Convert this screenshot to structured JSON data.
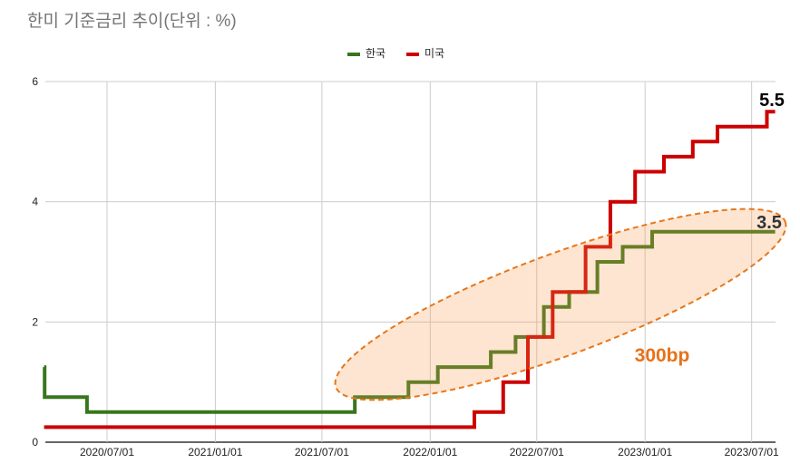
{
  "title": "한미 기준금리 추이(단위 : %)",
  "legend": [
    {
      "label": "한국",
      "color": "#38761d"
    },
    {
      "label": "미국",
      "color": "#cc0000"
    }
  ],
  "annotations": {
    "us_last_value": "5.5",
    "kr_last_value": "3.5",
    "spread_label": "300bp"
  },
  "colors": {
    "korea": "#38761d",
    "us": "#cc0000",
    "highlight_fill": "#f7964680",
    "highlight_stroke": "#e8761a",
    "spread_text": "#e8711a",
    "gridline": "#cccccc",
    "axis": "#333333",
    "title": "#757575"
  },
  "chart_data": {
    "type": "line",
    "step": true,
    "title": "한미 기준금리 추이(단위 : %)",
    "xlabel": "",
    "ylabel": "",
    "ylim": [
      0,
      6
    ],
    "yticks": [
      0,
      2,
      4,
      6
    ],
    "xticks": [
      "2020/07/01",
      "2021/01/01",
      "2021/07/01",
      "2022/01/01",
      "2022/07/01",
      "2023/01/01",
      "2023/07/01"
    ],
    "grid": true,
    "legend_position": "top",
    "series": [
      {
        "name": "한국",
        "color": "#38761d",
        "points": [
          [
            "2020-03-16",
            1.25
          ],
          [
            "2020-03-17",
            0.75
          ],
          [
            "2020-05-28",
            0.5
          ],
          [
            "2021-08-26",
            0.75
          ],
          [
            "2021-11-25",
            1.0
          ],
          [
            "2022-01-14",
            1.25
          ],
          [
            "2022-04-14",
            1.5
          ],
          [
            "2022-05-26",
            1.75
          ],
          [
            "2022-07-13",
            2.25
          ],
          [
            "2022-08-25",
            2.5
          ],
          [
            "2022-10-12",
            3.0
          ],
          [
            "2022-11-24",
            3.25
          ],
          [
            "2023-01-13",
            3.5
          ],
          [
            "2023-08-10",
            3.5
          ]
        ]
      },
      {
        "name": "미국",
        "color": "#cc0000",
        "points": [
          [
            "2020-03-16",
            0.25
          ],
          [
            "2022-03-17",
            0.5
          ],
          [
            "2022-05-05",
            1.0
          ],
          [
            "2022-06-16",
            1.75
          ],
          [
            "2022-07-28",
            2.5
          ],
          [
            "2022-09-22",
            3.25
          ],
          [
            "2022-11-03",
            4.0
          ],
          [
            "2022-12-15",
            4.5
          ],
          [
            "2023-02-02",
            4.75
          ],
          [
            "2023-03-23",
            5.0
          ],
          [
            "2023-05-04",
            5.25
          ],
          [
            "2023-07-27",
            5.5
          ],
          [
            "2023-08-10",
            5.5
          ]
        ]
      }
    ],
    "annotations": [
      {
        "text": "5.5",
        "series": "미국",
        "note": "last value label"
      },
      {
        "text": "3.5",
        "series": "한국",
        "note": "last value label"
      },
      {
        "text": "300bp",
        "note": "rate gap, highlighted by dashed orange ellipse over 2021/08–2023/08 Korea series"
      }
    ]
  }
}
